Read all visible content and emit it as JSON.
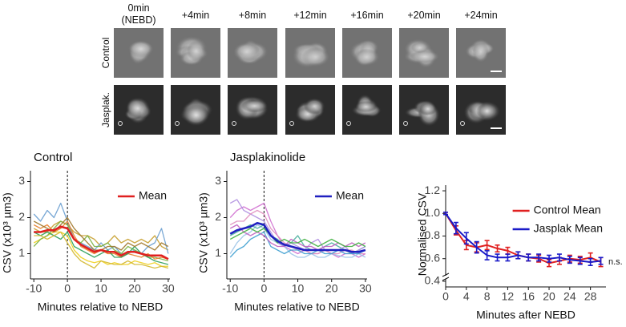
{
  "panel": {
    "time_labels": [
      "0min (NEBD)",
      "+4min",
      "+8min",
      "+12min",
      "+16min",
      "+20min",
      "+24min"
    ],
    "row_labels": [
      "Control",
      "Jasplak."
    ]
  },
  "chart_data": [
    {
      "type": "line",
      "title": "Control",
      "x_label": "Minutes relative to NEBD",
      "y_label": "CSV (x10³ µm3)",
      "x": [
        -10,
        -8,
        -6,
        -4,
        -2,
        0,
        2,
        4,
        6,
        8,
        10,
        12,
        14,
        16,
        18,
        20,
        22,
        24,
        26,
        28,
        30
      ],
      "xlim": [
        -11,
        30.5
      ],
      "xticks": [
        -10,
        0,
        10,
        20,
        30
      ],
      "ylim": [
        0.3,
        3.3
      ],
      "yticks": [
        1,
        2,
        3
      ],
      "vline": 0,
      "legend": "upper right",
      "series": [
        {
          "color": "#f0d020",
          "values": [
            1.3,
            1.4,
            1.5,
            1.6,
            1.6,
            1.5,
            1.1,
            0.9,
            0.8,
            0.75,
            0.8,
            0.7,
            0.75,
            0.7,
            0.7,
            0.8,
            0.75,
            0.7,
            0.75,
            0.65,
            0.65
          ]
        },
        {
          "color": "#c8a030",
          "values": [
            1.7,
            1.6,
            1.6,
            1.8,
            1.9,
            1.8,
            1.6,
            1.5,
            1.5,
            1.4,
            1.2,
            1.3,
            1.5,
            1.3,
            1.4,
            1.3,
            1.4,
            1.3,
            1.5,
            1.2,
            1.1
          ]
        },
        {
          "color": "#6a9ed0",
          "values": [
            2.1,
            1.9,
            2.2,
            2.0,
            2.4,
            1.9,
            1.4,
            1.3,
            1.2,
            1.1,
            1.3,
            1.1,
            1.2,
            1.0,
            1.0,
            1.1,
            1.0,
            1.2,
            1.3,
            1.7,
            1.0
          ]
        },
        {
          "color": "#7cb342",
          "values": [
            1.2,
            1.4,
            1.5,
            1.7,
            1.9,
            1.8,
            1.4,
            1.3,
            1.5,
            1.2,
            1.2,
            1.3,
            1.1,
            1.0,
            1.2,
            1.1,
            1.0,
            0.9,
            0.9,
            0.85,
            0.8
          ]
        },
        {
          "color": "#e8802a",
          "values": [
            1.8,
            1.7,
            1.8,
            1.6,
            1.7,
            1.9,
            1.5,
            1.2,
            1.1,
            1.0,
            1.1,
            1.0,
            1.0,
            0.9,
            1.0,
            0.95,
            0.9,
            1.0,
            0.85,
            0.9,
            0.85
          ]
        },
        {
          "color": "#2e9e5a",
          "values": [
            1.6,
            1.5,
            1.6,
            1.5,
            1.4,
            1.6,
            1.2,
            1.1,
            1.0,
            0.9,
            1.0,
            1.1,
            0.9,
            0.9,
            1.0,
            1.2,
            1.0,
            0.9,
            0.8,
            0.75,
            0.7
          ]
        },
        {
          "color": "#a0782a",
          "values": [
            1.9,
            1.8,
            1.7,
            1.6,
            1.8,
            2.0,
            1.7,
            1.5,
            1.3,
            1.1,
            1.1,
            1.2,
            1.2,
            1.1,
            1.3,
            1.2,
            1.3,
            1.2,
            1.1,
            1.3,
            1.2
          ]
        },
        {
          "color": "#d4b830",
          "values": [
            1.5,
            1.5,
            1.4,
            1.5,
            1.6,
            1.3,
            1.0,
            0.8,
            0.7,
            0.6,
            0.8,
            0.75,
            0.7,
            0.7,
            0.8,
            0.7,
            0.7,
            0.65,
            0.6,
            0.65,
            0.6
          ]
        },
        {
          "name": "Mean",
          "color": "#e02020",
          "values": [
            1.6,
            1.6,
            1.65,
            1.65,
            1.75,
            1.7,
            1.4,
            1.25,
            1.15,
            1.05,
            1.1,
            1.05,
            1.05,
            0.95,
            1.05,
            1.05,
            1.0,
            0.95,
            0.95,
            0.95,
            0.85
          ]
        }
      ]
    },
    {
      "type": "line",
      "title": "Jasplakinolide",
      "x_label": "Minutes relative to NEBD",
      "y_label": "CSV (x10³ µm3)",
      "x": [
        -10,
        -8,
        -6,
        -4,
        -2,
        0,
        2,
        4,
        6,
        8,
        10,
        12,
        14,
        16,
        18,
        20,
        22,
        24,
        26,
        28,
        30
      ],
      "xlim": [
        -11,
        30.5
      ],
      "xticks": [
        -10,
        0,
        10,
        20,
        30
      ],
      "ylim": [
        0.3,
        3.3
      ],
      "yticks": [
        1,
        2,
        3
      ],
      "vline": 0,
      "legend": "upper right",
      "series": [
        {
          "color": "#d070d0",
          "values": [
            2.0,
            2.2,
            2.3,
            2.2,
            2.3,
            2.4,
            1.9,
            1.5,
            1.2,
            1.1,
            1.0,
            1.1,
            1.0,
            1.0,
            1.1,
            1.0,
            0.9,
            1.0,
            1.0,
            0.9,
            1.0
          ]
        },
        {
          "color": "#9fc5e8",
          "values": [
            1.0,
            1.3,
            1.5,
            1.6,
            1.8,
            1.7,
            1.4,
            1.3,
            1.2,
            1.0,
            0.9,
            0.9,
            1.0,
            0.9,
            0.9,
            1.0,
            0.95,
            0.9,
            0.9,
            1.0,
            0.9
          ]
        },
        {
          "color": "#4db0a0",
          "values": [
            1.5,
            1.6,
            1.7,
            1.8,
            1.7,
            1.8,
            1.5,
            1.4,
            1.2,
            1.3,
            1.5,
            1.2,
            1.1,
            1.1,
            1.2,
            1.3,
            1.2,
            1.1,
            1.0,
            1.1,
            1.2
          ]
        },
        {
          "color": "#b090e0",
          "values": [
            2.4,
            2.5,
            2.2,
            2.1,
            2.0,
            1.9,
            1.6,
            1.3,
            1.2,
            1.3,
            1.2,
            1.1,
            1.3,
            1.4,
            1.1,
            1.0,
            1.1,
            1.2,
            1.0,
            1.1,
            1.2
          ]
        },
        {
          "color": "#e090c0",
          "values": [
            1.8,
            1.9,
            1.9,
            2.1,
            2.2,
            2.1,
            1.7,
            1.5,
            1.3,
            1.2,
            1.1,
            1.1,
            1.0,
            1.0,
            1.1,
            1.0,
            1.0,
            1.1,
            1.1,
            1.0,
            1.0
          ]
        },
        {
          "color": "#3fa0d0",
          "values": [
            0.9,
            1.1,
            1.2,
            1.4,
            1.5,
            1.6,
            1.2,
            1.1,
            1.0,
            1.1,
            1.1,
            1.0,
            1.0,
            1.1,
            1.0,
            1.0,
            1.1,
            1.0,
            1.0,
            1.0,
            1.1
          ]
        },
        {
          "color": "#c060c0",
          "values": [
            1.7,
            1.8,
            1.6,
            1.5,
            1.6,
            1.5,
            1.3,
            1.2,
            1.2,
            1.4,
            1.3,
            1.2,
            1.2,
            1.1,
            1.2,
            1.2,
            1.3,
            1.2,
            1.3,
            1.2,
            1.3
          ]
        },
        {
          "color": "#40b040",
          "values": [
            1.4,
            1.5,
            1.6,
            1.7,
            1.6,
            1.7,
            1.5,
            1.3,
            1.4,
            1.3,
            1.3,
            1.4,
            1.3,
            1.2,
            1.3,
            1.4,
            1.3,
            1.2,
            1.2,
            1.3,
            1.2
          ]
        },
        {
          "name": "Mean",
          "color": "#2020c0",
          "values": [
            1.55,
            1.65,
            1.7,
            1.75,
            1.85,
            1.8,
            1.5,
            1.35,
            1.25,
            1.2,
            1.15,
            1.1,
            1.1,
            1.1,
            1.1,
            1.1,
            1.1,
            1.1,
            1.05,
            1.05,
            1.1
          ]
        }
      ]
    },
    {
      "type": "errorline",
      "x_label": "Minutes after NEBD",
      "y_label": "Normalised CSV",
      "annotation": "n.s.",
      "x": [
        0,
        2,
        4,
        6,
        8,
        10,
        12,
        14,
        16,
        18,
        20,
        22,
        24,
        26,
        28,
        30
      ],
      "xlim": [
        0,
        31
      ],
      "xticks": [
        0,
        4,
        8,
        12,
        16,
        20,
        24,
        28
      ],
      "ylim": [
        0.35,
        1.25
      ],
      "yticks": [
        0.4,
        0.6,
        0.8,
        {
          "value": 1,
          "label": "1.0"
        },
        1.2
      ],
      "legend": "upper right",
      "series": [
        {
          "name": "Control Mean",
          "color": "#e02020",
          "values": [
            1.0,
            0.85,
            0.72,
            0.7,
            0.72,
            0.69,
            0.67,
            0.63,
            0.61,
            0.6,
            0.56,
            0.58,
            0.6,
            0.59,
            0.61,
            0.57
          ],
          "errors": [
            0.01,
            0.04,
            0.04,
            0.04,
            0.04,
            0.03,
            0.03,
            0.03,
            0.03,
            0.03,
            0.03,
            0.03,
            0.03,
            0.03,
            0.04,
            0.04
          ]
        },
        {
          "name": "Jasplak Mean",
          "color": "#1a1ac8",
          "values": [
            1.0,
            0.87,
            0.78,
            0.7,
            0.63,
            0.61,
            0.61,
            0.63,
            0.61,
            0.61,
            0.6,
            0.61,
            0.59,
            0.58,
            0.57,
            0.58
          ],
          "errors": [
            0.01,
            0.05,
            0.05,
            0.05,
            0.04,
            0.03,
            0.03,
            0.03,
            0.03,
            0.03,
            0.03,
            0.03,
            0.03,
            0.03,
            0.03,
            0.03
          ]
        }
      ]
    }
  ]
}
